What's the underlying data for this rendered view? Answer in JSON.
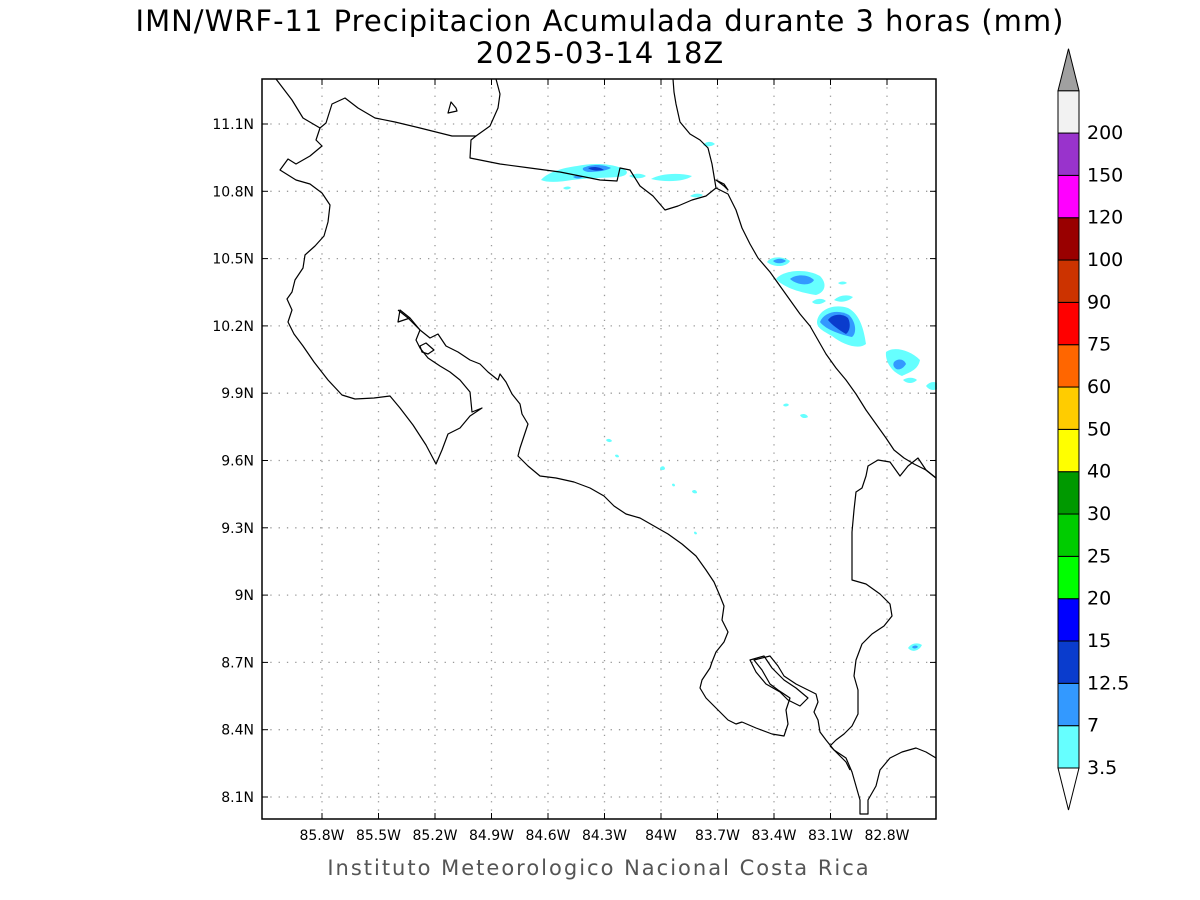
{
  "title": {
    "line1": "IMN/WRF-11 Precipitacion Acumulada durante 3 horas (mm)",
    "line2": "2025-03-14 18Z"
  },
  "footer": "Instituto Meteorologico Nacional Costa Rica",
  "map": {
    "lat_labels": [
      "11.1N",
      "10.8N",
      "10.5N",
      "10.2N",
      "9.9N",
      "9.6N",
      "9.3N",
      "9N",
      "8.7N",
      "8.4N",
      "8.1N"
    ],
    "lon_labels": [
      "85.8W",
      "85.5W",
      "85.2W",
      "84.9W",
      "84.6W",
      "84.3W",
      "84W",
      "83.7W",
      "83.4W",
      "83.1W",
      "82.8W"
    ],
    "lat_values": [
      11.1,
      10.8,
      10.5,
      10.2,
      9.9,
      9.6,
      9.3,
      9.0,
      8.7,
      8.4,
      8.1
    ],
    "lon_values": [
      -85.8,
      -85.5,
      -85.2,
      -84.9,
      -84.6,
      -84.3,
      -84.0,
      -83.7,
      -83.4,
      -83.1,
      -82.8
    ],
    "gridlines": "dotted",
    "coastline_color": "#000000"
  },
  "colorbar": {
    "labels": [
      "3.5",
      "7",
      "12.5",
      "15",
      "20",
      "25",
      "30",
      "40",
      "50",
      "60",
      "75",
      "90",
      "100",
      "120",
      "150",
      "200"
    ],
    "colors": [
      "#66ffff",
      "#3399ff",
      "#0a3ccd",
      "#0000ff",
      "#00ff00",
      "#00cc00",
      "#009900",
      "#ffff00",
      "#ffcc00",
      "#ff6600",
      "#ff0000",
      "#cc3300",
      "#990000",
      "#ff00ff",
      "#9933cc",
      "#f2f2f2"
    ],
    "low_end_color": "#ffffff",
    "high_end_color": "#a0a0a0"
  }
}
